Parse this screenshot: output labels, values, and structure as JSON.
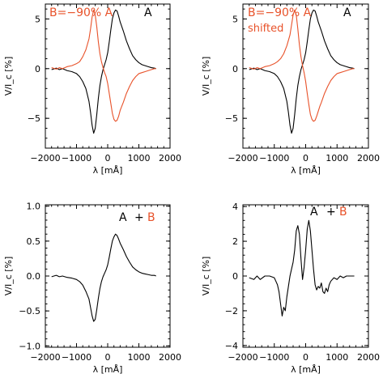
{
  "colors": {
    "black": "#000000",
    "red": "#e8522a"
  },
  "chart_data": [
    {
      "type": "line",
      "panel": "top-left",
      "xlabel": "λ [mÅ]",
      "ylabel": "V/I_c [%]",
      "xlim": [
        -2000,
        2000
      ],
      "ylim": [
        -8,
        6.5
      ],
      "xticks": [
        -2000,
        -1000,
        0,
        1000,
        2000
      ],
      "yticks": [
        -5,
        0,
        5
      ],
      "annotations": [
        {
          "text": "B=−90% A",
          "color": "#e8522a"
        },
        {
          "text": "A",
          "color": "#000000"
        }
      ],
      "series": [
        {
          "name": "A",
          "color": "#000000",
          "x": [
            -1800,
            -1650,
            -1550,
            -1450,
            -1300,
            -1150,
            -1000,
            -900,
            -800,
            -700,
            -600,
            -550,
            -500,
            -450,
            -400,
            -350,
            -300,
            -250,
            -200,
            -150,
            -100,
            -50,
            0,
            50,
            100,
            150,
            200,
            250,
            300,
            350,
            400,
            500,
            600,
            700,
            800,
            900,
            1000,
            1100,
            1200,
            1300,
            1400,
            1500,
            1550
          ],
          "y": [
            -0.1,
            0.05,
            -0.1,
            0,
            -0.2,
            -0.3,
            -0.5,
            -0.8,
            -1.3,
            -2.0,
            -3.3,
            -4.4,
            -5.7,
            -6.5,
            -6.0,
            -4.6,
            -3.0,
            -1.7,
            -0.8,
            -0.1,
            0.4,
            0.9,
            1.6,
            2.7,
            3.9,
            5.0,
            5.6,
            5.9,
            5.8,
            5.3,
            4.7,
            3.8,
            2.8,
            2.0,
            1.3,
            0.9,
            0.6,
            0.4,
            0.3,
            0.2,
            0.1,
            0.05,
            0.0
          ]
        },
        {
          "name": "B",
          "color": "#e8522a",
          "x": [
            -1800,
            -1650,
            -1550,
            -1450,
            -1300,
            -1150,
            -1000,
            -900,
            -800,
            -700,
            -600,
            -550,
            -500,
            -450,
            -400,
            -350,
            -300,
            -250,
            -200,
            -150,
            -100,
            -50,
            0,
            50,
            100,
            150,
            200,
            250,
            300,
            350,
            400,
            500,
            600,
            700,
            800,
            900,
            1000,
            1100,
            1200,
            1300,
            1400,
            1500,
            1550
          ],
          "y": [
            0.1,
            -0.05,
            0.1,
            0,
            0.2,
            0.3,
            0.5,
            0.7,
            1.2,
            1.9,
            3.0,
            4.0,
            5.2,
            5.9,
            5.4,
            4.2,
            2.7,
            1.5,
            0.7,
            0.1,
            -0.4,
            -0.8,
            -1.5,
            -2.5,
            -3.5,
            -4.5,
            -5.1,
            -5.3,
            -5.2,
            -4.8,
            -4.2,
            -3.4,
            -2.5,
            -1.8,
            -1.2,
            -0.8,
            -0.5,
            -0.4,
            -0.3,
            -0.2,
            -0.1,
            0.0,
            0.0
          ]
        }
      ]
    },
    {
      "type": "line",
      "panel": "top-right",
      "xlabel": "λ [mÅ]",
      "ylabel": "V/I_c [%]",
      "xlim": [
        -2000,
        2000
      ],
      "ylim": [
        -8,
        6.5
      ],
      "xticks": [
        -2000,
        -1000,
        0,
        1000,
        2000
      ],
      "yticks": [
        -5,
        0,
        5
      ],
      "annotations": [
        {
          "text": "B=−90% A",
          "color": "#e8522a"
        },
        {
          "text": "shifted",
          "color": "#e8522a"
        },
        {
          "text": "A",
          "color": "#000000"
        }
      ],
      "series": [
        {
          "name": "A",
          "color": "#000000",
          "x": [
            -1800,
            -1650,
            -1550,
            -1450,
            -1300,
            -1150,
            -1000,
            -900,
            -800,
            -700,
            -600,
            -550,
            -500,
            -450,
            -400,
            -350,
            -300,
            -250,
            -200,
            -150,
            -100,
            -50,
            0,
            50,
            100,
            150,
            200,
            250,
            300,
            350,
            400,
            500,
            600,
            700,
            800,
            900,
            1000,
            1100,
            1200,
            1300,
            1400,
            1500,
            1550
          ],
          "y": [
            -0.1,
            0.05,
            -0.1,
            0,
            -0.2,
            -0.3,
            -0.5,
            -0.8,
            -1.3,
            -2.0,
            -3.3,
            -4.4,
            -5.7,
            -6.5,
            -6.0,
            -4.6,
            -3.0,
            -1.7,
            -0.8,
            -0.1,
            0.4,
            0.9,
            1.6,
            2.7,
            3.9,
            5.0,
            5.6,
            5.9,
            5.8,
            5.3,
            4.7,
            3.8,
            2.8,
            2.0,
            1.3,
            0.9,
            0.6,
            0.4,
            0.3,
            0.2,
            0.1,
            0.05,
            0.0
          ]
        },
        {
          "name": "B",
          "color": "#e8522a",
          "x": [
            -1800,
            -1650,
            -1550,
            -1450,
            -1300,
            -1150,
            -1000,
            -900,
            -800,
            -700,
            -600,
            -500,
            -450,
            -400,
            -350,
            -300,
            -250,
            -200,
            -150,
            -100,
            -50,
            0,
            50,
            100,
            150,
            200,
            250,
            300,
            350,
            400,
            450,
            500,
            600,
            700,
            800,
            900,
            1000,
            1100,
            1200,
            1300,
            1400,
            1500,
            1550
          ],
          "y": [
            0.1,
            -0.05,
            0.1,
            0,
            0.2,
            0.3,
            0.5,
            0.7,
            1.0,
            1.5,
            2.3,
            3.4,
            4.4,
            5.4,
            5.9,
            5.4,
            4.0,
            2.4,
            1.2,
            0.3,
            -0.4,
            -1.3,
            -2.5,
            -3.6,
            -4.6,
            -5.1,
            -5.3,
            -5.2,
            -4.8,
            -4.3,
            -3.8,
            -3.4,
            -2.5,
            -1.8,
            -1.2,
            -0.8,
            -0.5,
            -0.4,
            -0.3,
            -0.2,
            -0.1,
            0.0,
            0.0
          ]
        }
      ]
    },
    {
      "type": "line",
      "panel": "bottom-left",
      "xlabel": "λ [mÅ]",
      "ylabel": "V/I_c [%]",
      "xlim": [
        -2000,
        2000
      ],
      "ylim": [
        -1.02,
        1.02
      ],
      "xticks": [
        -2000,
        -1000,
        0,
        1000,
        2000
      ],
      "yticks": [
        -1.0,
        -0.5,
        0.0,
        0.5,
        1.0
      ],
      "ytick_labels": [
        "−1.0",
        "−0.5",
        "0.0",
        "0.5",
        "1.0"
      ],
      "annotations": [
        {
          "text": "A",
          "color": "#000000"
        },
        {
          "text": "+",
          "color": "#000000"
        },
        {
          "text": "B",
          "color": "#e8522a"
        }
      ],
      "series": [
        {
          "name": "A + B",
          "color": "#000000",
          "x": [
            -1800,
            -1650,
            -1550,
            -1450,
            -1300,
            -1150,
            -1000,
            -900,
            -800,
            -700,
            -600,
            -550,
            -500,
            -450,
            -400,
            -350,
            -300,
            -250,
            -200,
            -150,
            -100,
            -50,
            0,
            50,
            100,
            150,
            200,
            250,
            300,
            350,
            400,
            500,
            600,
            700,
            800,
            900,
            1000,
            1100,
            1200,
            1300,
            1400,
            1500,
            1550
          ],
          "y": [
            -0.01,
            0.01,
            -0.01,
            0,
            -0.02,
            -0.03,
            -0.05,
            -0.08,
            -0.13,
            -0.22,
            -0.33,
            -0.45,
            -0.57,
            -0.65,
            -0.62,
            -0.48,
            -0.32,
            -0.18,
            -0.08,
            -0.01,
            0.04,
            0.09,
            0.16,
            0.27,
            0.39,
            0.5,
            0.56,
            0.6,
            0.58,
            0.53,
            0.47,
            0.38,
            0.28,
            0.2,
            0.13,
            0.09,
            0.06,
            0.04,
            0.03,
            0.02,
            0.01,
            0.01,
            0.0
          ]
        }
      ]
    },
    {
      "type": "line",
      "panel": "bottom-right",
      "xlabel": "λ [mÅ]",
      "ylabel": "V/I_c [%]",
      "xlim": [
        -2000,
        2000
      ],
      "ylim": [
        -4.1,
        4.1
      ],
      "xticks": [
        -2000,
        -1000,
        0,
        1000,
        2000
      ],
      "yticks": [
        -4,
        -2,
        0,
        2,
        4
      ],
      "ytick_labels": [
        "−4",
        "−2",
        "0",
        "2",
        "4"
      ],
      "annotations": [
        {
          "text": "A",
          "color": "#000000"
        },
        {
          "text": "+",
          "color": "#000000"
        },
        {
          "text": "B",
          "color": "#e8522a"
        }
      ],
      "series": [
        {
          "name": "A + B",
          "color": "#000000",
          "x": [
            -1800,
            -1650,
            -1550,
            -1450,
            -1300,
            -1150,
            -1000,
            -950,
            -900,
            -850,
            -800,
            -750,
            -700,
            -650,
            -600,
            -550,
            -500,
            -450,
            -400,
            -350,
            -300,
            -250,
            -200,
            -150,
            -100,
            -50,
            0,
            50,
            100,
            150,
            200,
            250,
            300,
            350,
            400,
            450,
            500,
            550,
            600,
            650,
            700,
            750,
            800,
            900,
            1000,
            1100,
            1200,
            1300,
            1400,
            1500,
            1550
          ],
          "y": [
            -0.1,
            -0.2,
            0.0,
            -0.2,
            0.0,
            0.0,
            -0.1,
            -0.3,
            -0.5,
            -0.9,
            -1.6,
            -2.3,
            -1.8,
            -2.0,
            -1.2,
            -0.6,
            0.0,
            0.4,
            0.8,
            1.5,
            2.6,
            2.9,
            2.4,
            1.0,
            -0.2,
            0.5,
            1.5,
            2.7,
            3.2,
            2.6,
            1.5,
            0.4,
            -0.5,
            -0.8,
            -0.6,
            -0.7,
            -0.4,
            -0.9,
            -1.0,
            -0.7,
            -0.9,
            -0.5,
            -0.3,
            -0.1,
            -0.2,
            0.0,
            -0.1,
            0.0,
            0.0,
            0.0,
            0.0
          ]
        }
      ]
    }
  ]
}
